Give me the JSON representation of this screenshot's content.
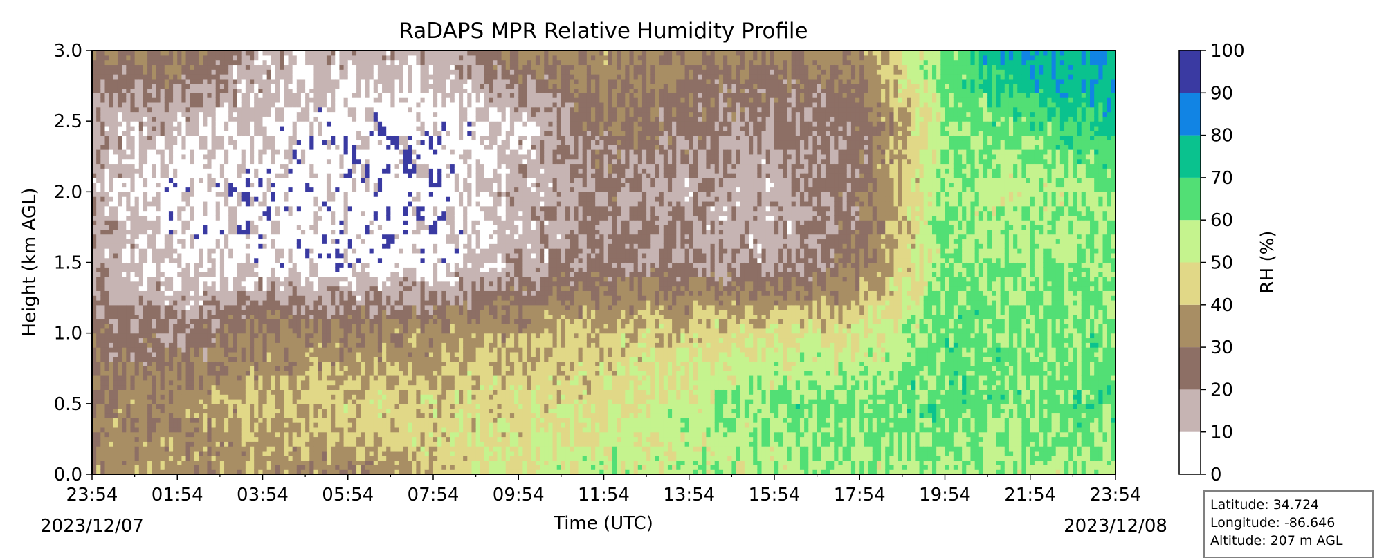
{
  "chart_data": {
    "type": "heatmap",
    "subtype": "filled-contour",
    "title": "RaDAPS MPR Relative Humidity Profile",
    "xlabel": "Time (UTC)",
    "ylabel": "Height (km AGL)",
    "x_tick_labels": [
      "23:54",
      "01:54",
      "03:54",
      "05:54",
      "07:54",
      "09:54",
      "11:54",
      "13:54",
      "15:54",
      "17:54",
      "19:54",
      "21:54",
      "23:54"
    ],
    "x_start_date": "2023/12/07",
    "x_end_date": "2023/12/08",
    "ylim": [
      0,
      3.0
    ],
    "y_ticks": [
      0.0,
      0.5,
      1.0,
      1.5,
      2.0,
      2.5,
      3.0
    ],
    "colorbar": {
      "label": "RH (%)",
      "ticks": [
        0,
        10,
        20,
        30,
        40,
        50,
        60,
        70,
        80,
        90,
        100
      ],
      "levels": [
        {
          "min": 0,
          "max": 10,
          "color": "#ffffff"
        },
        {
          "min": 10,
          "max": 20,
          "color": "#c6b4b3"
        },
        {
          "min": 20,
          "max": 30,
          "color": "#8d6f65"
        },
        {
          "min": 30,
          "max": 40,
          "color": "#a88e64"
        },
        {
          "min": 40,
          "max": 50,
          "color": "#e1d887"
        },
        {
          "min": 50,
          "max": 60,
          "color": "#c5f38e"
        },
        {
          "min": 60,
          "max": 70,
          "color": "#52df75"
        },
        {
          "min": 70,
          "max": 80,
          "color": "#0ac28e"
        },
        {
          "min": 80,
          "max": 90,
          "color": "#1184e4"
        },
        {
          "min": 90,
          "max": 100,
          "color": "#3a3aa2"
        }
      ]
    },
    "height_km": [
      0.0,
      0.5,
      1.0,
      1.5,
      2.0,
      2.5,
      3.0
    ],
    "rh_grid": [
      [
        35,
        35,
        35,
        32,
        44,
        50,
        55,
        55,
        55,
        58,
        57,
        56,
        58
      ],
      [
        32,
        32,
        42,
        45,
        45,
        46,
        48,
        55,
        62,
        62,
        65,
        62,
        65
      ],
      [
        25,
        22,
        30,
        30,
        35,
        38,
        42,
        45,
        48,
        48,
        65,
        60,
        62
      ],
      [
        18,
        8,
        8,
        5,
        5,
        15,
        22,
        22,
        15,
        28,
        60,
        60,
        60
      ],
      [
        15,
        5,
        5,
        5,
        5,
        15,
        22,
        16,
        15,
        25,
        60,
        55,
        58
      ],
      [
        18,
        12,
        10,
        5,
        5,
        10,
        28,
        25,
        20,
        22,
        60,
        65,
        75
      ],
      [
        25,
        35,
        15,
        15,
        15,
        32,
        35,
        30,
        30,
        35,
        65,
        85,
        82
      ]
    ]
  },
  "info": {
    "latitude": "Latitude: 34.724",
    "longitude": "Longitude: -86.646",
    "altitude": "Altitude: 207 m AGL"
  }
}
